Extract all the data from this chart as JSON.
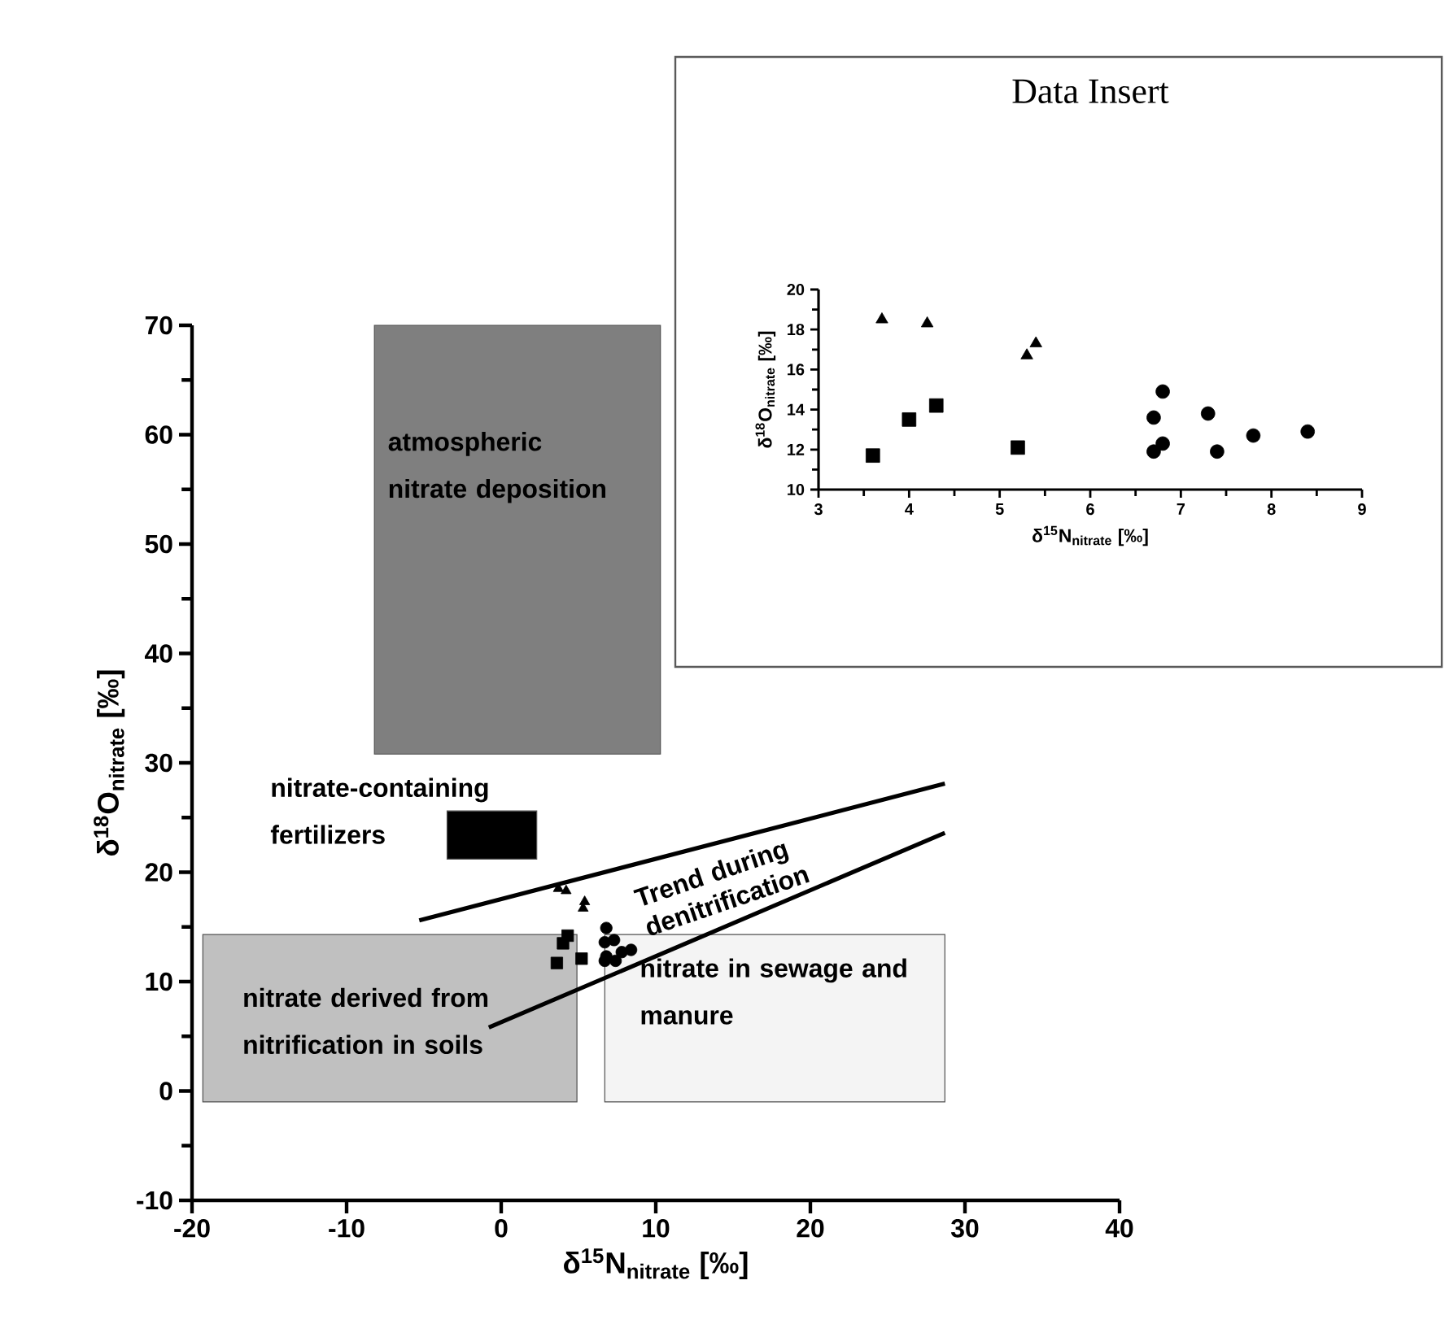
{
  "chart_data": [
    {
      "type": "scatter",
      "xlabel": "δ$^{15}$N$_{nitrate}$ [‰]",
      "ylabel": "δ$^{18}$O$_{nitrate}$ [‰]",
      "xlim": [
        -20,
        40
      ],
      "xticks": [
        -20,
        -10,
        0,
        10,
        20,
        30,
        40
      ],
      "ylim": [
        -10,
        70
      ],
      "yticks": [
        -10,
        0,
        10,
        20,
        30,
        40,
        50,
        60,
        70
      ],
      "series": [
        {
          "type": "area",
          "color": "#7f7f7f",
          "x": [
            -8.2,
            10.3,
            10.3,
            -8.2,
            -8.2
          ],
          "values": [
            30.8,
            30.8,
            70,
            70,
            30.8
          ]
        },
        {
          "type": "area",
          "color": "#000000",
          "x": [
            -3.5,
            2.3,
            2.3,
            -3.5,
            -3.5
          ],
          "values": [
            21.2,
            21.2,
            25.6,
            25.6,
            21.2
          ]
        },
        {
          "type": "area",
          "color": "#c0c0c0",
          "x": [
            -19.3,
            4.9,
            4.9,
            -19.3,
            -19.3
          ],
          "values": [
            -1,
            -1,
            14.3,
            14.3,
            -1
          ]
        },
        {
          "type": "area",
          "color": "#f4f4f4",
          "x": [
            6.7,
            28.7,
            28.7,
            6.7,
            6.7
          ],
          "values": [
            -1,
            -1,
            14.3,
            14.3,
            -1
          ]
        },
        {
          "type": "line",
          "color": "#000000",
          "x": [
            -5.3,
            28.7
          ],
          "values": [
            15.6,
            28.1
          ]
        },
        {
          "type": "line",
          "color": "#000000",
          "x": [
            -0.8,
            28.7
          ],
          "values": [
            5.8,
            23.6
          ]
        },
        {
          "marker": "triangle",
          "color": "#000000",
          "x": [
            3.7,
            4.2,
            5.4,
            5.3
          ],
          "values": [
            18.5,
            18.3,
            17.3,
            16.7
          ]
        },
        {
          "marker": "square",
          "color": "#000000",
          "x": [
            3.6,
            4.0,
            4.3,
            5.2
          ],
          "values": [
            11.7,
            13.5,
            14.2,
            12.1
          ]
        },
        {
          "marker": "circle",
          "color": "#000000",
          "x": [
            6.8,
            6.7,
            7.3,
            6.8,
            6.7,
            7.4,
            7.8,
            8.4
          ],
          "values": [
            14.9,
            13.6,
            13.8,
            12.3,
            11.9,
            11.9,
            12.7,
            12.9
          ]
        }
      ],
      "annotations": [
        "atmospheric nitrate deposition",
        "nitrate-containing fertilizers",
        "nitrate derived from nitrification in soils",
        "nitrate in sewage and manure",
        "Trend during denitrification"
      ]
    },
    {
      "type": "scatter",
      "title": "Data Insert",
      "xlabel": "δ$^{15}$N$_{nitrate}$ [‰]",
      "ylabel": "δ$^{18}$O$_{nitrate}$ [‰]",
      "xlim": [
        3,
        9
      ],
      "xticks": [
        3,
        4,
        5,
        6,
        7,
        8,
        9
      ],
      "ylim": [
        10,
        20
      ],
      "yticks": [
        10,
        12,
        14,
        16,
        18,
        20
      ],
      "series": [
        {
          "marker": "triangle",
          "color": "#000000",
          "x": [
            3.7,
            4.2,
            5.4,
            5.3
          ],
          "values": [
            18.5,
            18.3,
            17.3,
            16.7
          ]
        },
        {
          "marker": "square",
          "color": "#000000",
          "x": [
            3.6,
            4.0,
            4.3,
            5.2
          ],
          "values": [
            11.7,
            13.5,
            14.2,
            12.1
          ]
        },
        {
          "marker": "circle",
          "color": "#000000",
          "x": [
            6.8,
            6.7,
            7.3,
            6.8,
            6.7,
            7.4,
            7.8,
            8.4
          ],
          "values": [
            14.9,
            13.6,
            13.8,
            12.3,
            11.9,
            11.9,
            12.7,
            12.9
          ]
        }
      ]
    }
  ]
}
